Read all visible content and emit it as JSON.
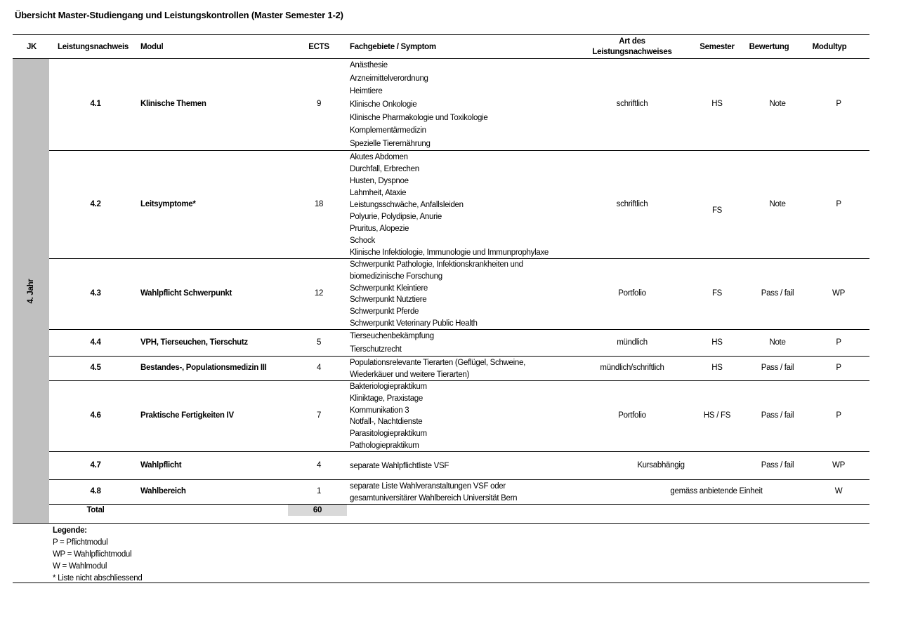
{
  "title": "Übersicht Master-Studiengang und Leistungskontrollen (Master Semester 1-2)",
  "headers": {
    "jk": "JK",
    "leistungsnachweis": "Leistungsnachweis",
    "modul": "Modul",
    "ects": "ECTS",
    "fachgebiete": "Fachgebiete / Symptom",
    "art_line1": "Art des",
    "art_line2": "Leistungsnachweises",
    "semester": "Semester",
    "bewertung": "Bewertung",
    "modultyp": "Modultyp"
  },
  "year_label": "4. Jahr",
  "rows": [
    {
      "nr": "4.1",
      "modul": "Klinische Themen",
      "ects": "9",
      "fachgebiete": [
        "Anästhesie",
        "Arzneimittelverordnung",
        "Heimtiere",
        "Klinische Onkologie",
        "Klinische Pharmakologie und Toxikologie",
        "Komplementärmedizin",
        "Spezielle Tierernährung"
      ],
      "art": "schriftlich",
      "semester": "HS",
      "bewertung": "Note",
      "modultyp": "P"
    },
    {
      "nr": "4.2",
      "modul": "Leitsymptome*",
      "ects": "18",
      "fachgebiete": [
        "Akutes Abdomen",
        "Durchfall, Erbrechen",
        "Husten, Dyspnoe",
        "Lahmheit, Ataxie",
        "Leistungsschwäche, Anfallsleiden",
        "Polyurie, Polydipsie, Anurie",
        "Pruritus, Alopezie",
        "Schock",
        "Klinische Infektiologie, Immunologie und Immunprophylaxe"
      ],
      "art": "schriftlich",
      "semester": "FS",
      "bewertung": "Note",
      "modultyp": "P"
    },
    {
      "nr": "4.3",
      "modul": "Wahlpflicht Schwerpunkt",
      "ects": "12",
      "fachgebiete": [
        "Schwerpunkt Pathologie, Infektionskrankheiten und",
        "biomedizinische Forschung",
        "Schwerpunkt Kleintiere",
        "Schwerpunkt Nutztiere",
        "Schwerpunkt Pferde",
        "Schwerpunkt Veterinary Public Health"
      ],
      "art": "Portfolio",
      "semester": "FS",
      "bewertung": "Pass / fail",
      "modultyp": "WP"
    },
    {
      "nr": "4.4",
      "modul": "VPH, Tierseuchen, Tierschutz",
      "ects": "5",
      "fachgebiete": [
        "Tierseuchenbekämpfung",
        "Tierschutzrecht"
      ],
      "art": "mündlich",
      "semester": "HS",
      "bewertung": "Note",
      "modultyp": "P"
    },
    {
      "nr": "4.5",
      "modul": "Bestandes-, Populationsmedizin III",
      "ects": "4",
      "fachgebiete": [
        "Populationsrelevante Tierarten (Geflügel, Schweine,",
        "Wiederkäuer und weitere Tierarten)"
      ],
      "art": "mündlich/schriftlich",
      "semester": "HS",
      "bewertung": "Pass / fail",
      "modultyp": "P"
    },
    {
      "nr": "4.6",
      "modul": "Praktische Fertigkeiten IV",
      "ects": "7",
      "fachgebiete": [
        "Bakteriologiepraktikum",
        "Kliniktage, Praxistage",
        "Kommunikation 3",
        "Notfall-, Nachtdienste",
        "Parasitologiepraktikum",
        "Pathologiepraktikum"
      ],
      "art": "Portfolio",
      "semester": "HS / FS",
      "bewertung": "Pass / fail",
      "modultyp": "P"
    },
    {
      "nr": "4.7",
      "modul": "Wahlpflicht",
      "ects": "4",
      "fachgebiete": [
        "separate Wahlpflichtliste VSF"
      ],
      "art": "Kursabhängig",
      "semester": "",
      "bewertung": "Pass / fail",
      "modultyp": "WP"
    },
    {
      "nr": "4.8",
      "modul": "Wahlbereich",
      "ects": "1",
      "fachgebiete": [
        "separate Liste Wahlveranstaltungen VSF oder",
        "gesamtuniversitärer Wahlbereich Universität Bern"
      ],
      "art": "gemäss anbietende Einheit",
      "semester": "",
      "bewertung": "",
      "modultyp": "W"
    }
  ],
  "total": {
    "label": "Total",
    "ects": "60"
  },
  "legend": {
    "title": "Legende:",
    "items": [
      "P = Pflichtmodul",
      "WP = Wahlpflichtmodul",
      "W = Wahlmodul",
      "* Liste nicht abschliessend"
    ]
  }
}
